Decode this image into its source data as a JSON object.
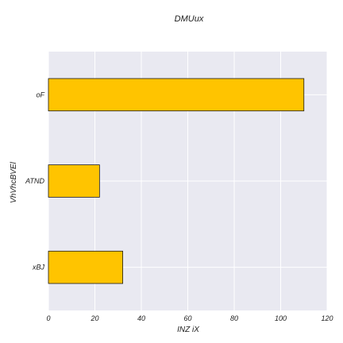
{
  "chart_data": {
    "type": "bar",
    "orientation": "horizontal",
    "title": "DMUux",
    "xlabel": "INZ iX",
    "ylabel": "VhVhcBVEl",
    "categories": [
      "oF",
      "ATND",
      "xBJ"
    ],
    "values": [
      110,
      22,
      32
    ],
    "xlim": [
      0,
      120
    ],
    "xticks": [
      "0",
      "20",
      "40",
      "60",
      "80",
      "100",
      "120"
    ],
    "grid": true,
    "legend": "none",
    "colors": {
      "bar_fill": "#ffc400",
      "bar_edge": "#1a1a1a",
      "plot_background": "#e9e9f1",
      "grid": "#ffffff"
    }
  }
}
